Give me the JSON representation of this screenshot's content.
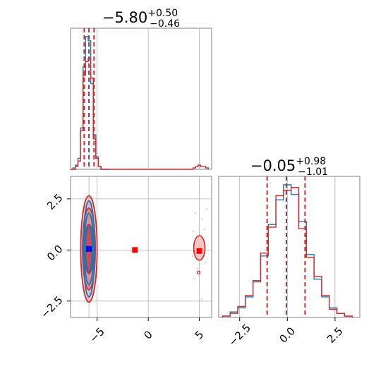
{
  "chart_data": {
    "type": "corner",
    "colors": {
      "blue": "#1f77b4",
      "red": "#d62728",
      "marker_blue": "#0000ff",
      "marker_red": "#ff0000",
      "dashed_line": "#8b3a55",
      "grid": "#b0b0b0"
    },
    "panels": [
      {
        "id": "hist_x",
        "type": "histogram",
        "title": {
          "main": "−5.80",
          "sup": "+0.50",
          "sub": "−0.46"
        },
        "xlim": [
          -7.6,
          6.2
        ],
        "quantile_lines": [
          -6.26,
          -5.8,
          -5.3
        ],
        "series": [
          {
            "name": "",
            "color": "#1f77b4",
            "x": [
              -7.5,
              -7.25,
              -7.0,
              -6.75,
              -6.5,
              -6.25,
              -6.0,
              -5.75,
              -5.5,
              -5.25,
              -5.0,
              -4.75,
              -4.5,
              -4.25,
              -4.0
            ],
            "density": [
              0.0,
              0.01,
              0.03,
              0.08,
              0.3,
              0.74,
              0.96,
              0.93,
              0.62,
              0.25,
              0.09,
              0.02,
              0.0,
              0.0,
              0.0
            ]
          },
          {
            "name": "",
            "color": "#d62728",
            "x": [
              -7.5,
              -7.25,
              -7.0,
              -6.75,
              -6.5,
              -6.25,
              -6.0,
              -5.75,
              -5.5,
              -5.25,
              -5.0,
              -4.75,
              -4.5,
              -4.25,
              -4.0,
              4.25,
              4.5,
              4.75,
              5.0,
              5.25,
              5.5,
              5.75
            ],
            "density": [
              0.0,
              0.0,
              0.02,
              0.06,
              0.28,
              0.68,
              0.78,
              0.8,
              0.66,
              0.22,
              0.08,
              0.02,
              0.0,
              0.0,
              0.0,
              0.0,
              0.01,
              0.02,
              0.03,
              0.02,
              0.02,
              0.01
            ]
          }
        ]
      },
      {
        "id": "scatter_xy",
        "type": "2d-contour",
        "xlim": [
          -7.6,
          6.2
        ],
        "ylim": [
          -3.3,
          3.6
        ],
        "xticks": [
          "−5",
          "0",
          "5"
        ],
        "xtick_values": [
          -5,
          0,
          5
        ],
        "yticks": [
          "−2.5",
          "0.0",
          "2.5"
        ],
        "ytick_values": [
          -2.5,
          0.0,
          2.5
        ],
        "blue_peak": {
          "x": -5.8,
          "y": 0.05
        },
        "red_markers": [
          {
            "x": -5.8,
            "y": 0.05
          },
          {
            "x": -1.3,
            "y": 0.0
          },
          {
            "x": 5.0,
            "y": -0.05
          }
        ],
        "contour_levels_blue": [
          {
            "rx": 0.55,
            "ry": 2.35
          },
          {
            "rx": 0.45,
            "ry": 1.75
          },
          {
            "rx": 0.32,
            "ry": 1.1
          }
        ],
        "contour_levels_red": [
          {
            "rx": 0.8,
            "ry": 2.6
          },
          {
            "rx": 0.62,
            "ry": 2.0
          },
          {
            "rx": 0.42,
            "ry": 1.2
          }
        ]
      },
      {
        "id": "hist_y",
        "type": "histogram",
        "title": {
          "main": "−0.05",
          "sup": "+0.98",
          "sub": "−1.01"
        },
        "xlim": [
          -3.6,
          3.8
        ],
        "xticks": [
          "−2.5",
          "0.0",
          "2.5"
        ],
        "xtick_values": [
          -2.5,
          0.0,
          2.5
        ],
        "quantile_lines": [
          -1.06,
          -0.05,
          0.93
        ],
        "series": [
          {
            "name": "",
            "color": "#1f77b4",
            "x": [
              -3.2,
              -2.8,
              -2.4,
              -2.0,
              -1.6,
              -1.2,
              -0.8,
              -0.4,
              0.0,
              0.4,
              0.8,
              1.2,
              1.6,
              2.0,
              2.4,
              2.8,
              3.2
            ],
            "density": [
              0.01,
              0.04,
              0.07,
              0.15,
              0.27,
              0.45,
              0.68,
              0.86,
              0.97,
              0.9,
              0.7,
              0.46,
              0.28,
              0.15,
              0.07,
              0.03,
              0.01
            ]
          },
          {
            "name": "",
            "color": "#d62728",
            "x": [
              -3.2,
              -2.8,
              -2.4,
              -2.0,
              -1.6,
              -1.2,
              -0.8,
              -0.4,
              0.0,
              0.4,
              0.8,
              1.2,
              1.6,
              2.0,
              2.4,
              2.8,
              3.2
            ],
            "density": [
              0.01,
              0.03,
              0.08,
              0.16,
              0.26,
              0.47,
              0.66,
              0.89,
              0.93,
              0.95,
              0.65,
              0.44,
              0.3,
              0.16,
              0.06,
              0.03,
              0.01
            ]
          }
        ]
      }
    ]
  }
}
